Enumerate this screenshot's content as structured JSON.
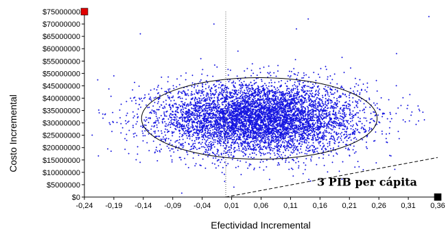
{
  "chart_data": {
    "type": "scatter",
    "title": "",
    "xlabel": "Efectividad Incremental",
    "ylabel": "Costo Incremental",
    "xlim": [
      -0.24,
      0.36
    ],
    "ylim": [
      0,
      75000000
    ],
    "x_ticks": [
      "-0,24",
      "-0,19",
      "-0,14",
      "-0,09",
      "-0,04",
      "0,01",
      "0,06",
      "0,11",
      "0,16",
      "0,21",
      "0,26",
      "0,31",
      "0,36"
    ],
    "y_ticks": [
      "$0",
      "$5000000",
      "$10000000",
      "$15000000",
      "$20000000",
      "$25000000",
      "$30000000",
      "$35000000",
      "$40000000",
      "$45000000",
      "$50000000",
      "$55000000",
      "$60000000",
      "$65000000",
      "$70000000",
      "$75000000"
    ],
    "grid": false,
    "point_color": "#1515e0",
    "series": [
      {
        "type": "scatter-cloud",
        "n_points": 6500,
        "mean_x": 0.057,
        "mean_y": 31800000,
        "sd_x": 0.085,
        "sd_y": 7200000,
        "points_extreme": [
          {
            "x": -0.145,
            "y": 66000000
          },
          {
            "x": -0.02,
            "y": 70000000
          },
          {
            "x": 0.14,
            "y": 72000000
          },
          {
            "x": 0.12,
            "y": 68000000
          },
          {
            "x": 0.345,
            "y": 73000000
          },
          {
            "x": -0.19,
            "y": 49000000
          },
          {
            "x": 0.29,
            "y": 58000000
          }
        ]
      }
    ],
    "confidence_ellipse": {
      "cx": 0.057,
      "cy": 31800000,
      "rx": 0.2,
      "ry": 16500000
    },
    "reference_line_x": 0.0,
    "threshold_line": {
      "label": "3 PIB per cápita",
      "x1": 0.0,
      "y1": 0,
      "x2": 0.36,
      "y2": 16000000
    },
    "corner_markers": [
      {
        "x": -0.24,
        "y": 75000000,
        "color": "#e00000"
      },
      {
        "x": 0.36,
        "y": 0,
        "color": "#000000"
      }
    ]
  }
}
